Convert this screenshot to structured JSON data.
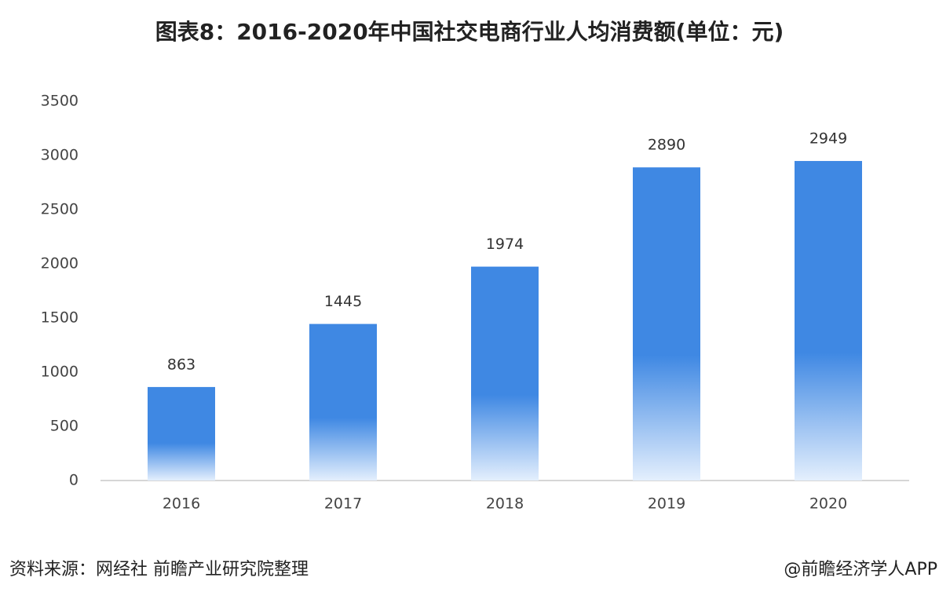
{
  "chart_data": {
    "type": "bar",
    "title": "图表8：2016-2020年中国社交电商行业人均消费额(单位：元)",
    "categories": [
      "2016",
      "2017",
      "2018",
      "2019",
      "2020"
    ],
    "values": [
      863,
      1445,
      1974,
      2890,
      2949
    ],
    "color": "#3f88e3",
    "ylim": [
      0,
      3500
    ],
    "yticks": [
      0,
      500,
      1000,
      1500,
      2000,
      2500,
      3000,
      3500
    ],
    "grid": false
  },
  "footer": {
    "source": "资料来源：网经社 前瞻产业研究院整理",
    "credit": "@前瞻经济学人APP"
  }
}
